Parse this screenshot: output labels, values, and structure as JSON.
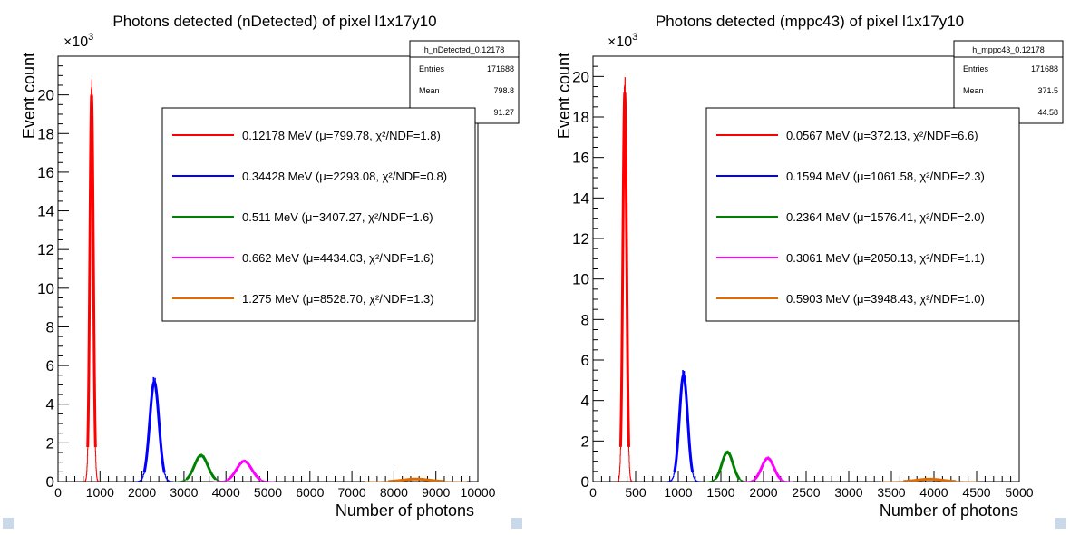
{
  "chart_data": [
    {
      "type": "line",
      "title": "Photons detected (nDetected) of pixel l1x17y10",
      "xlabel": "Number of photons",
      "ylabel": "Event count",
      "y_multiplier": "×10",
      "y_multiplier_exp": "3",
      "xlim": [
        0,
        10000
      ],
      "ylim": [
        0,
        22
      ],
      "x_ticks": [
        0,
        1000,
        2000,
        3000,
        4000,
        5000,
        6000,
        7000,
        8000,
        9000,
        10000
      ],
      "y_ticks": [
        0,
        2,
        4,
        6,
        8,
        10,
        12,
        14,
        16,
        18,
        20
      ],
      "stats_box": {
        "name": "h_nDetected_0.12178",
        "rows": [
          {
            "label": "Entries",
            "value": "171688"
          },
          {
            "label": "Mean",
            "value": "798.8"
          },
          {
            "label": "Std Dev",
            "value": "91.27"
          }
        ]
      },
      "series": [
        {
          "name": "0.12178 MeV (μ=799.78, χ²/NDF=1.8)",
          "color": "#ff0000",
          "mu": 799.78,
          "sigma": 42,
          "amp": 20.0
        },
        {
          "name": "0.34428 MeV (μ=2293.08, χ²/NDF=0.8)",
          "color": "#0000ff",
          "mu": 2293.08,
          "sigma": 110,
          "amp": 5.15
        },
        {
          "name": "0.511 MeV (μ=3407.27, χ²/NDF=1.6)",
          "color": "#008000",
          "mu": 3407.27,
          "sigma": 160,
          "amp": 1.35
        },
        {
          "name": "0.662 MeV (μ=4434.03, χ²/NDF=1.6)",
          "color": "#ff00ff",
          "mu": 4434.03,
          "sigma": 180,
          "amp": 1.05
        },
        {
          "name": "1.275 MeV (μ=8528.70, χ²/NDF=1.3)",
          "color": "#e06c00",
          "mu": 8528.7,
          "sigma": 300,
          "amp": 0.13
        }
      ]
    },
    {
      "type": "line",
      "title": "Photons detected (mppc43) of pixel l1x17y10",
      "xlabel": "Number of photons",
      "ylabel": "Event count",
      "y_multiplier": "×10",
      "y_multiplier_exp": "3",
      "xlim": [
        0,
        5000
      ],
      "ylim": [
        0,
        21
      ],
      "x_ticks": [
        0,
        500,
        1000,
        1500,
        2000,
        2500,
        3000,
        3500,
        4000,
        4500,
        5000
      ],
      "y_ticks": [
        0,
        2,
        4,
        6,
        8,
        10,
        12,
        14,
        16,
        18,
        20
      ],
      "stats_box": {
        "name": "h_mppc43_0.12178",
        "rows": [
          {
            "label": "Entries",
            "value": "171688"
          },
          {
            "label": "Mean",
            "value": "371.5"
          },
          {
            "label": "Std Dev",
            "value": "44.58"
          }
        ]
      },
      "series": [
        {
          "name": "0.0567 MeV (μ=372.13, χ²/NDF=6.6)",
          "color": "#ff0000",
          "mu": 372.13,
          "sigma": 22,
          "amp": 19.2
        },
        {
          "name": "0.1594 MeV (μ=1061.58, χ²/NDF=2.3)",
          "color": "#0000ff",
          "mu": 1061.58,
          "sigma": 48,
          "amp": 5.25
        },
        {
          "name": "0.2364 MeV (μ=1576.41, χ²/NDF=2.0)",
          "color": "#008000",
          "mu": 1576.41,
          "sigma": 65,
          "amp": 1.45
        },
        {
          "name": "0.3061 MeV (μ=2050.13, χ²/NDF=1.1)",
          "color": "#ff00ff",
          "mu": 2050.13,
          "sigma": 72,
          "amp": 1.15
        },
        {
          "name": "0.5903 MeV (μ=3948.43, χ²/NDF=1.0)",
          "color": "#e06c00",
          "mu": 3948.43,
          "sigma": 140,
          "amp": 0.12
        }
      ]
    }
  ]
}
